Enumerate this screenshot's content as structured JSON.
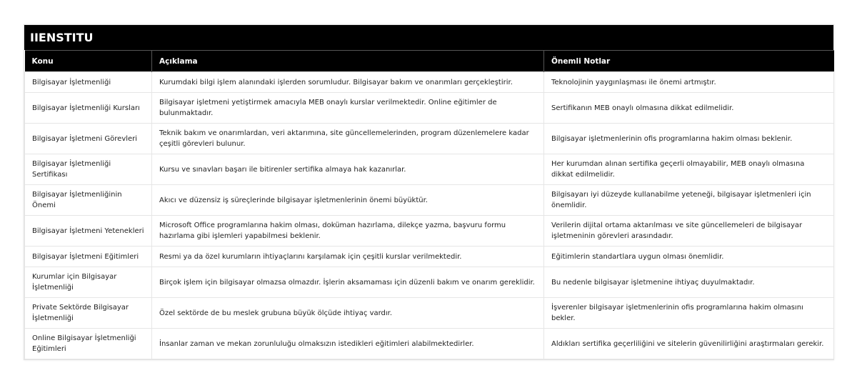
{
  "title": "IIENSTITU",
  "columns": [
    "Konu",
    "Açıklama",
    "Önemli Notlar"
  ],
  "rows": [
    [
      "Bilgisayar İşletmenliği",
      "Kurumdaki bilgi işlem alanındaki işlerden sorumludur. Bilgisayar bakım ve onarımları gerçekleştirir.",
      "Teknolojinin yaygınlaşması ile önemi artmıştır."
    ],
    [
      "Bilgisayar İşletmenliği Kursları",
      "Bilgisayar işletmeni yetiştirmek amacıyla MEB onaylı kurslar verilmektedir. Online eğitimler de bulunmaktadır.",
      "Sertifikanın MEB onaylı olmasına dikkat edilmelidir."
    ],
    [
      "Bilgisayar İşletmeni Görevleri",
      "Teknik bakım ve onarımlardan, veri aktarımına, site güncellemelerinden, program düzenlemelere kadar çeşitli görevleri bulunur.",
      "Bilgisayar işletmenlerinin ofis programlarına hakim olması beklenir."
    ],
    [
      "Bilgisayar İşletmenliği Sertifikası",
      "Kursu ve sınavları başarı ile bitirenler sertifika almaya hak kazanırlar.",
      "Her kurumdan alınan sertifika geçerli olmayabilir, MEB onaylı olmasına dikkat edilmelidir."
    ],
    [
      "Bilgisayar İşletmenliğinin Önemi",
      "Akıcı ve düzensiz iş süreçlerinde bilgisayar işletmenlerinin önemi büyüktür.",
      "Bilgisayarı iyi düzeyde kullanabilme yeteneği, bilgisayar işletmenleri için önemlidir."
    ],
    [
      "Bilgisayar İşletmeni Yetenekleri",
      "Microsoft Office programlarına hakim olması, doküman hazırlama, dilekçe yazma, başvuru formu hazırlama gibi işlemleri yapabilmesi beklenir.",
      "Verilerin dijital ortama aktarılması ve site güncellemeleri de bilgisayar işletmeninin görevleri arasındadır."
    ],
    [
      "Bilgisayar İşletmeni Eğitimleri",
      "Resmi ya da özel kurumların ihtiyaçlarını karşılamak için çeşitli kurslar verilmektedir.",
      "Eğitimlerin standartlara uygun olması önemlidir."
    ],
    [
      "Kurumlar için Bilgisayar İşletmenliği",
      "Birçok işlem için bilgisayar olmazsa olmazdır. İşlerin aksamaması için düzenli bakım ve onarım gereklidir.",
      "Bu nedenle bilgisayar işletmenine ihtiyaç duyulmaktadır."
    ],
    [
      "Private Sektörde Bilgisayar İşletmenliği",
      "Özel sektörde de bu meslek grubuna büyük ölçüde ihtiyaç vardır.",
      "İşverenler bilgisayar işletmenlerinin ofis programlarına hakim olmasını bekler."
    ],
    [
      "Online Bilgisayar İşletmenliği Eğitimleri",
      "İnsanlar zaman ve mekan zorunluluğu olmaksızın istedikleri eğitimleri alabilmektedirler.",
      "Aldıkları sertifika geçerliliğini ve sitelerin güvenilirliğini araştırmaları gerekir."
    ]
  ]
}
